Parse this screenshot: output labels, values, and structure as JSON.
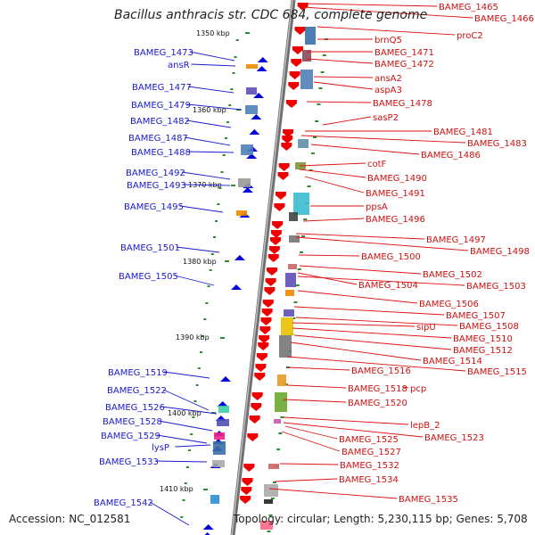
{
  "title": "Bacillus anthracis str. CDC 684, complete genome",
  "accession": "Accession: NC_012581",
  "topology": "Topology: circular; Length: 5,230,115 bp; Genes: 5,708",
  "colors": {
    "left_label": "#1a1acc",
    "right_label": "#cc1111",
    "left_line": "#1a1acc",
    "right_line": "#dd1111",
    "arrow_forward": "#0000dd",
    "arrow_reverse": "#ee0000",
    "tick": "#2e8b2e",
    "axis": "#888888"
  },
  "kbp_markers": [
    "1350 kbp",
    "1360 kbp",
    "1370 kbp",
    "1380 kbp",
    "1390 kbp",
    "1400 kbp",
    "1410 kbp"
  ],
  "left_labels": [
    "BAMEG_1473",
    "ansR",
    "BAMEG_1477",
    "BAMEG_1479",
    "BAMEG_1482",
    "BAMEG_1487",
    "BAMEG_1488",
    "BAMEG_1492",
    "BAMEG_1493",
    "BAMEG_1495",
    "BAMEG_1501",
    "BAMEG_1505",
    "BAMEG_1519",
    "BAMEG_1522",
    "BAMEG_1526",
    "BAMEG_1528",
    "BAMEG_1529",
    "lysP",
    "BAMEG_1533",
    "BAMEG_1542"
  ],
  "right_labels": [
    "BAMEG_1465",
    "BAMEG_1466",
    "proC2",
    "brnQ5",
    "BAMEG_1471",
    "BAMEG_1472",
    "ansA2",
    "aspA3",
    "BAMEG_1478",
    "sasP2",
    "BAMEG_1481",
    "BAMEG_1483",
    "BAMEG_1486",
    "cotF",
    "BAMEG_1490",
    "BAMEG_1491",
    "ppsA",
    "BAMEG_1496",
    "BAMEG_1497",
    "BAMEG_1498",
    "BAMEG_1500",
    "BAMEG_1502",
    "BAMEG_1504",
    "BAMEG_1503",
    "BAMEG_1506",
    "BAMEG_1507",
    "BAMEG_1508",
    "sipU",
    "BAMEG_1510",
    "BAMEG_1512",
    "BAMEG_1514",
    "BAMEG_1516",
    "BAMEG_1515",
    "BAMEG_1518",
    "pcp",
    "BAMEG_1520",
    "lepB_2",
    "BAMEG_1523",
    "BAMEG_1525",
    "BAMEG_1527",
    "BAMEG_1532",
    "BAMEG_1534",
    "BAMEG_1535"
  ]
}
